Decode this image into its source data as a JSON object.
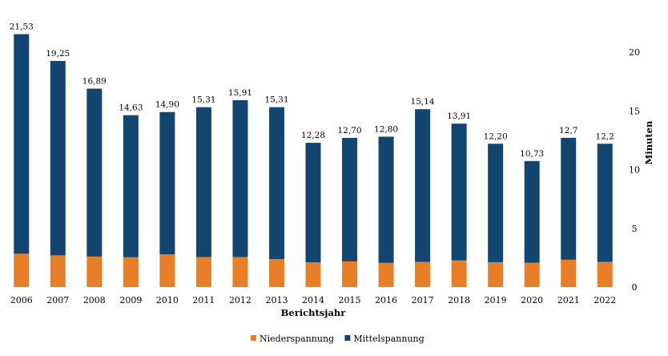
{
  "chart_data": {
    "type": "bar",
    "stacked": true,
    "title": "",
    "xlabel": "Berichtsjahr",
    "ylabel": "Minuten",
    "y_axis_side": "right",
    "ylim": [
      0,
      22
    ],
    "yticks": [
      "0",
      "5",
      "10",
      "15",
      "20"
    ],
    "grid": false,
    "legend_position": "bottom",
    "categories": [
      "2006",
      "2007",
      "2008",
      "2009",
      "2010",
      "2011",
      "2012",
      "2013",
      "2014",
      "2015",
      "2016",
      "2017",
      "2018",
      "2019",
      "2020",
      "2021",
      "2022"
    ],
    "series": [
      {
        "name": "Niederspannung",
        "color": "#e87e26",
        "values": [
          2.84,
          2.7,
          2.6,
          2.54,
          2.78,
          2.56,
          2.56,
          2.39,
          2.1,
          2.19,
          2.06,
          2.14,
          2.27,
          2.12,
          2.07,
          2.33,
          2.14
        ]
      },
      {
        "name": "Mittelspannung",
        "color": "#124570",
        "values": [
          18.69,
          16.55,
          14.29,
          12.09,
          12.12,
          12.75,
          13.35,
          12.92,
          10.18,
          10.51,
          10.74,
          13.0,
          11.64,
          10.08,
          8.66,
          10.37,
          10.06
        ]
      }
    ],
    "total_labels": [
      "21,53",
      "19,25",
      "16,89",
      "14,63",
      "14,90",
      "15,31",
      "15,91",
      "15,31",
      "12,28",
      "12,70",
      "12,80",
      "15,14",
      "13,91",
      "12,20",
      "10,73",
      "12,7",
      "12,2"
    ]
  }
}
